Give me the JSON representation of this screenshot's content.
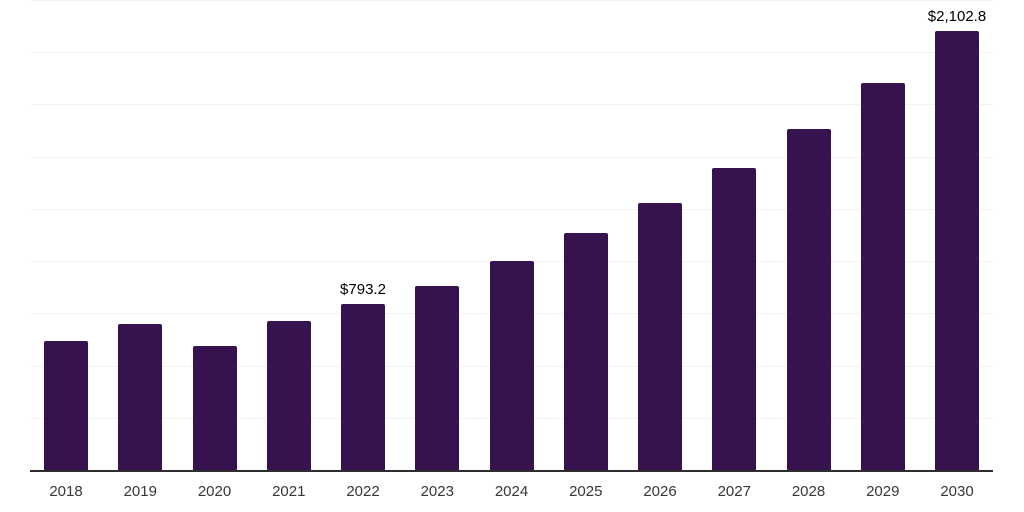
{
  "chart_style": {
    "background": "#ffffff",
    "bar_color": "#36124f",
    "axis_line_color": "#2e2e2e",
    "gridline_color": "#f2f2f2",
    "value_label_color": "#000000",
    "tick_label_color": "#373737"
  },
  "chart_data": {
    "type": "bar",
    "title": "",
    "xlabel": "",
    "ylabel": "",
    "categories": [
      "2018",
      "2019",
      "2020",
      "2021",
      "2022",
      "2023",
      "2024",
      "2025",
      "2026",
      "2027",
      "2028",
      "2029",
      "2030"
    ],
    "values": [
      616,
      701,
      595,
      715,
      793.2,
      883,
      1003,
      1133,
      1280,
      1445,
      1635,
      1853,
      2102.8
    ],
    "point_labels": [
      "",
      "",
      "",
      "",
      "$793.2",
      "",
      "",
      "",
      "",
      "",
      "",
      "",
      "$2,102.8"
    ],
    "ylim": [
      0,
      2250
    ],
    "gridline_step": 250,
    "grid": true,
    "legend": false,
    "value_axis_labels_visible": false
  }
}
